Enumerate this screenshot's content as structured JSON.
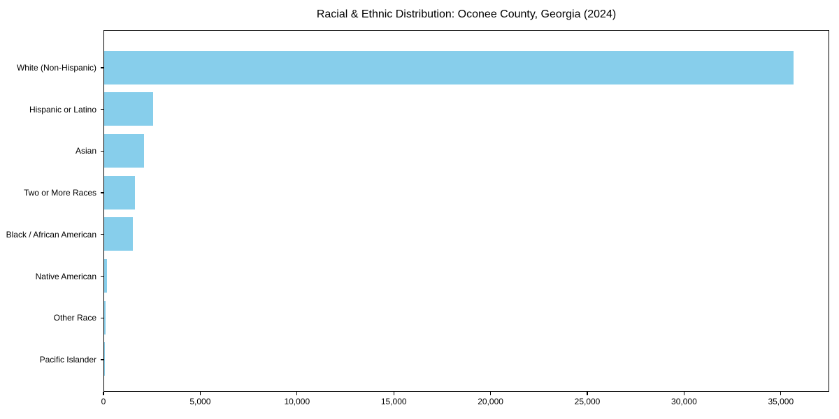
{
  "title": "Racial & Ethnic Distribution: Oconee County, Georgia (2024)",
  "chart_data": {
    "type": "bar",
    "orientation": "horizontal",
    "title": "Racial & Ethnic Distribution: Oconee County, Georgia (2024)",
    "categories": [
      "White (Non-Hispanic)",
      "Hispanic or Latino",
      "Asian",
      "Two or More Races",
      "Black / African American",
      "Native American",
      "Other Race",
      "Pacific Islander"
    ],
    "values": [
      35700,
      2550,
      2080,
      1580,
      1480,
      150,
      70,
      15
    ],
    "xlabel": "",
    "ylabel": "",
    "xlim": [
      0,
      37500
    ],
    "x_ticks": [
      0,
      5000,
      10000,
      15000,
      20000,
      25000,
      30000,
      35000
    ],
    "x_tick_labels": [
      "0",
      "5,000",
      "10,000",
      "15,000",
      "20,000",
      "25,000",
      "30,000",
      "35,000"
    ],
    "bar_color": "#87CEEB",
    "spine_color": "#000000",
    "background_color": "#FFFFFF",
    "text_color": "#000000",
    "grid": false,
    "legend": "none"
  }
}
